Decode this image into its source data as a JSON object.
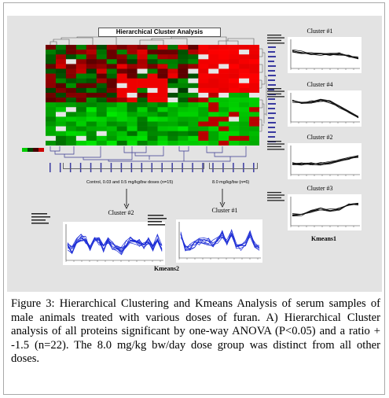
{
  "figure": {
    "heatmap_title": "Hierarchical Cluster Analysis",
    "group_left_label": "Control, 0.03 and 0.5 mg/kg/bw doses (n=15)",
    "group_right_label": "8.0 mg/kg/bw (n=6)",
    "left_cluster_label": "Cluster #2",
    "right_cluster_label": "Cluster #1",
    "kmeans2_label": "Kmeans2",
    "kmeans1_label": "Kmeans1",
    "side_clusters": [
      "Cluster #1",
      "Cluster #4",
      "Cluster #2",
      "Cluster #3"
    ],
    "colors": {
      "high": "#ff0000",
      "low": "#00dd00",
      "mid": "#000000",
      "missing": "#e6e6e6",
      "line_blue": "#1f2fd6",
      "line_black": "#111111",
      "panel_bg": "#e3e3e3"
    }
  },
  "caption": {
    "label": "Figure 3:",
    "text": "Hierarchical Clustering and Kmeans Analysis of serum samples of male animals treated with various doses of furan. A) Hierarchical Cluster analysis of all proteins significant by one-way ANOVA (P<0.05) and a ratio + -1.5 (n=22). The 8.0 mg/kg bw/day dose group was distinct from all other doses."
  }
}
